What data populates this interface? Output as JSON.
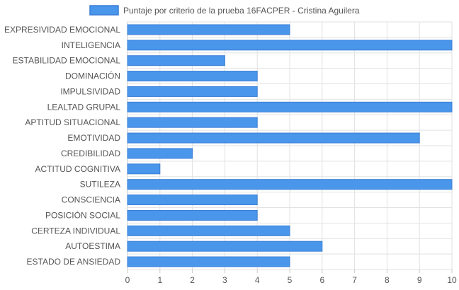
{
  "chart_data": {
    "type": "bar",
    "orientation": "horizontal",
    "legend": {
      "label": "Puntaje por criterio de la prueba 16FACPER - Cristina Aguilera",
      "placement": "top-center"
    },
    "categories": [
      "EXPRESIVIDAD EMOCIONAL",
      "INTELIGENCIA",
      "ESTABILIDAD EMOCIONAL",
      "DOMINACIÓN",
      "IMPULSIVIDAD",
      "LEALTAD GRUPAL",
      "APTITUD SITUACIONAL",
      "EMOTIVIDAD",
      "CREDIBILIDAD",
      "ACTITUD COGNITIVA",
      "SUTILEZA",
      "CONSCIENCIA",
      "POSICIÓN SOCIAL",
      "CERTEZA INDIVIDUAL",
      "AUTOESTIMA",
      "ESTADO DE ANSIEDAD"
    ],
    "values": [
      5,
      10,
      3,
      4,
      4,
      10,
      4,
      9,
      2,
      1,
      10,
      4,
      4,
      5,
      6,
      5
    ],
    "xlim": [
      0,
      10
    ],
    "xticks": [
      0,
      1,
      2,
      3,
      4,
      5,
      6,
      7,
      8,
      9,
      10
    ],
    "grid": true,
    "colors": {
      "bar": "#4a96eb",
      "bar_border": "#3a7fd6",
      "grid": "#e2e2e2"
    }
  }
}
